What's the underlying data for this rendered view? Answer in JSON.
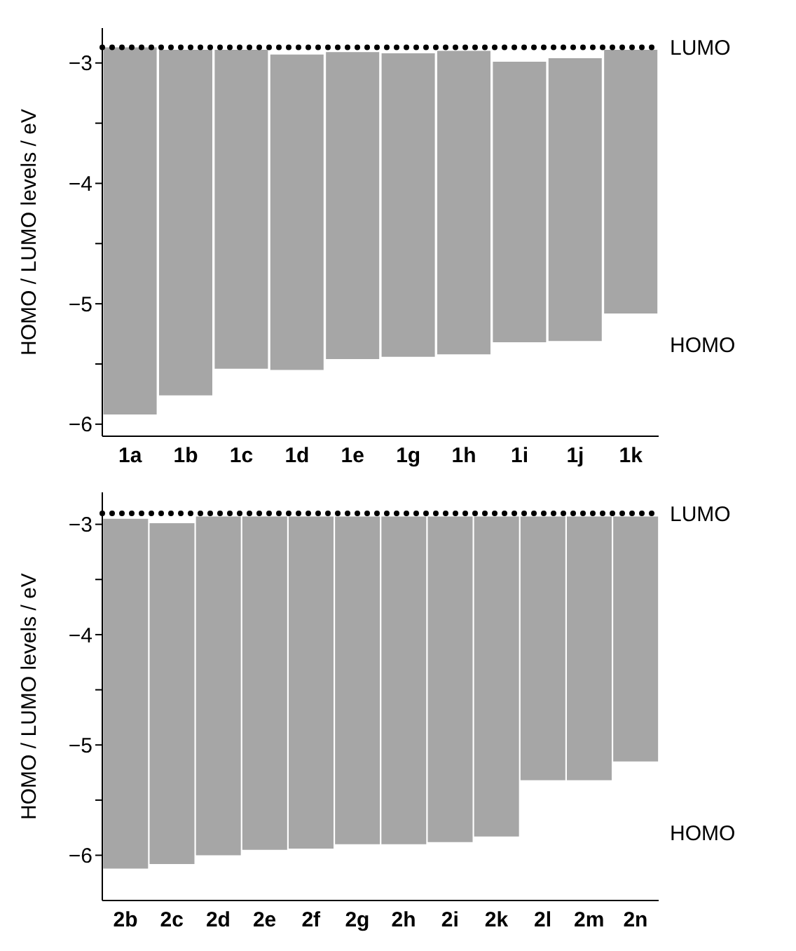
{
  "chart_data": [
    {
      "type": "bar",
      "ylabel": "HOMO / LUMO levels / eV",
      "categories": [
        "1a",
        "1b",
        "1c",
        "1d",
        "1e",
        "1g",
        "1h",
        "1i",
        "1j",
        "1k"
      ],
      "base": [
        -5.92,
        -5.76,
        -5.54,
        -5.55,
        -5.46,
        -5.44,
        -5.42,
        -5.32,
        -5.31,
        -5.08
      ],
      "values": [
        3.05,
        2.87,
        2.65,
        2.62,
        2.55,
        2.52,
        2.52,
        2.33,
        2.35,
        2.19
      ],
      "color": "#a6a6a6",
      "ylim": [
        -6.1,
        -2.71
      ],
      "yticks": [
        -6,
        {
          "value": -5.5,
          "label": null
        },
        -5,
        {
          "value": -4.5,
          "label": null
        },
        -4,
        {
          "value": -3.5,
          "label": null
        },
        -3
      ],
      "ref_lines": [
        {
          "axis": "y",
          "value": -2.87,
          "label": "LUMO",
          "color": "#000000",
          "line_style": "dotted"
        }
      ],
      "annotations": [
        "HOMO"
      ],
      "grid": false,
      "legend": false
    },
    {
      "type": "bar",
      "ylabel": "HOMO / LUMO levels / eV",
      "categories": [
        "2b",
        "2c",
        "2d",
        "2e",
        "2f",
        "2g",
        "2h",
        "2i",
        "2k",
        "2l",
        "2m",
        "2n"
      ],
      "base": [
        -6.12,
        -6.08,
        -6.0,
        -5.95,
        -5.94,
        -5.9,
        -5.9,
        -5.88,
        -5.83,
        -5.32,
        -5.32,
        -5.15
      ],
      "values": [
        3.17,
        3.09,
        3.07,
        3.02,
        3.01,
        2.97,
        2.97,
        2.95,
        2.9,
        2.39,
        2.39,
        2.22
      ],
      "color": "#a6a6a6",
      "ylim": [
        -6.41,
        -2.71
      ],
      "yticks": [
        -6,
        {
          "value": -5.5,
          "label": null
        },
        -5,
        {
          "value": -4.5,
          "label": null
        },
        -4,
        {
          "value": -3.5,
          "label": null
        },
        -3
      ],
      "ref_lines": [
        {
          "axis": "y",
          "value": -2.9,
          "label": "LUMO",
          "color": "#000000",
          "line_style": "dotted"
        }
      ],
      "annotations": [
        "HOMO"
      ],
      "grid": false,
      "legend": false
    }
  ]
}
